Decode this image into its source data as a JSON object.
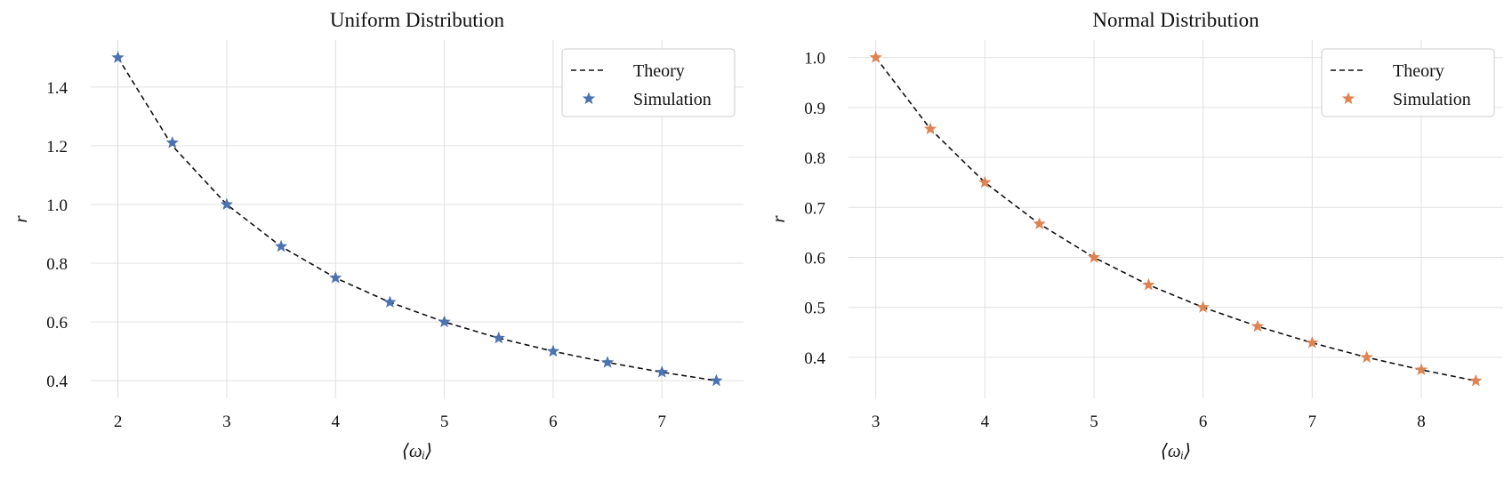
{
  "chart_data": [
    {
      "type": "line",
      "title": "Uniform Distribution",
      "xlabel": "⟨ωᵢ⟩",
      "ylabel": "r",
      "xlim": [
        1.75,
        7.75
      ],
      "ylim": [
        0.34,
        1.56
      ],
      "xticks": [
        2,
        3,
        4,
        5,
        6,
        7
      ],
      "yticks": [
        0.4,
        0.6,
        0.8,
        1.0,
        1.2,
        1.4
      ],
      "ytick_labels": [
        "0.4",
        "0.6",
        "0.8",
        "1.0",
        "1.2",
        "1.4"
      ],
      "grid": true,
      "legend_position": "top-right",
      "marker_color": "#4c72b0",
      "series": [
        {
          "name": "Theory",
          "style": "dashed-line",
          "color": "#111111",
          "x": [
            2.0,
            2.5,
            3.0,
            3.5,
            4.0,
            4.5,
            5.0,
            5.5,
            6.0,
            6.5,
            7.0,
            7.5
          ],
          "y": [
            1.5,
            1.2,
            1.0,
            0.857,
            0.75,
            0.667,
            0.6,
            0.545,
            0.5,
            0.462,
            0.429,
            0.4
          ]
        },
        {
          "name": "Simulation",
          "style": "star-marker",
          "color": "#4c72b0",
          "x": [
            2.0,
            2.5,
            3.0,
            3.5,
            4.0,
            4.5,
            5.0,
            5.5,
            6.0,
            6.5,
            7.0,
            7.5
          ],
          "y": [
            1.5,
            1.21,
            1.0,
            0.857,
            0.75,
            0.667,
            0.6,
            0.545,
            0.5,
            0.462,
            0.429,
            0.4
          ]
        }
      ]
    },
    {
      "type": "line",
      "title": "Normal Distribution",
      "xlabel": "⟨ωᵢ⟩",
      "ylabel": "r",
      "xlim": [
        2.75,
        8.75
      ],
      "ylim": [
        0.318,
        1.035
      ],
      "xticks": [
        3,
        4,
        5,
        6,
        7,
        8
      ],
      "yticks": [
        0.4,
        0.5,
        0.6,
        0.7,
        0.8,
        0.9,
        1.0
      ],
      "ytick_labels": [
        "0.4",
        "0.5",
        "0.6",
        "0.7",
        "0.8",
        "0.9",
        "1.0"
      ],
      "grid": true,
      "legend_position": "top-right",
      "marker_color": "#dd8452",
      "series": [
        {
          "name": "Theory",
          "style": "dashed-line",
          "color": "#111111",
          "x": [
            3.0,
            3.5,
            4.0,
            4.5,
            5.0,
            5.5,
            6.0,
            6.5,
            7.0,
            7.5,
            8.0,
            8.5
          ],
          "y": [
            1.0,
            0.857,
            0.75,
            0.667,
            0.6,
            0.545,
            0.5,
            0.462,
            0.429,
            0.4,
            0.375,
            0.353
          ]
        },
        {
          "name": "Simulation",
          "style": "star-marker",
          "color": "#dd8452",
          "x": [
            3.0,
            3.5,
            4.0,
            4.5,
            5.0,
            5.5,
            6.0,
            6.5,
            7.0,
            7.5,
            8.0,
            8.5
          ],
          "y": [
            1.0,
            0.857,
            0.75,
            0.667,
            0.6,
            0.545,
            0.5,
            0.462,
            0.429,
            0.4,
            0.375,
            0.353
          ]
        }
      ]
    }
  ]
}
